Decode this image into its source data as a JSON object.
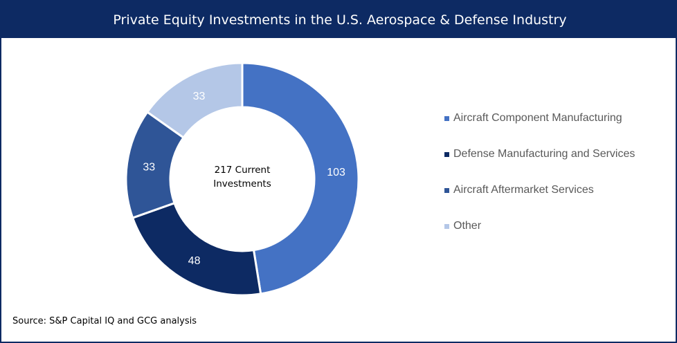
{
  "header": {
    "title": "Private Equity Investments in the U.S. Aerospace & Defense Industry"
  },
  "center_label": {
    "line1": "217 Current",
    "line2": "Investments"
  },
  "source": "Source: S&P Capital IQ and GCG analysis",
  "chart_data": {
    "type": "pie",
    "title": "Private Equity Investments in the U.S. Aerospace & Defense Industry",
    "legend_position": "right",
    "categories": [
      "Aircraft Component Manufacturing",
      "Defense Manufacturing and Services",
      "Aircraft Aftermarket Services",
      "Other"
    ],
    "values": [
      103,
      48,
      33,
      33
    ],
    "colors": [
      "#4472c4",
      "#0d2a63",
      "#2f5597",
      "#b4c7e7"
    ],
    "label_colors": [
      "#ffffff",
      "#ffffff",
      "#ffffff",
      "#ffffff"
    ],
    "total_label": "217 Current Investments"
  }
}
